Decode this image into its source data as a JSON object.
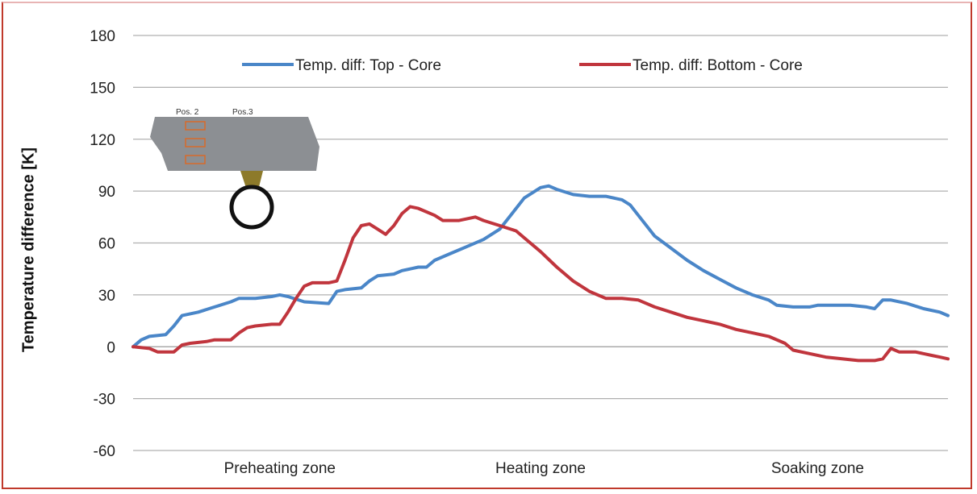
{
  "chart_data": {
    "type": "line",
    "title": "",
    "xlabel": "",
    "ylabel": "Temperature difference [K]",
    "ylim": [
      -60,
      180
    ],
    "yticks": [
      180,
      150,
      120,
      90,
      60,
      30,
      0,
      -30,
      -60
    ],
    "xlim": [
      0,
      100
    ],
    "grid": true,
    "legend_position": "top",
    "categories": [
      {
        "label": "Preheating zone",
        "x": 18
      },
      {
        "label": "Heating zone",
        "x": 50
      },
      {
        "label": "Soaking zone",
        "x": 84
      }
    ],
    "series": [
      {
        "name": "Temp. diff: Top - Core",
        "color": "#4a86c8",
        "points": [
          [
            0,
            0
          ],
          [
            1,
            4
          ],
          [
            2,
            6
          ],
          [
            4,
            7
          ],
          [
            5,
            12
          ],
          [
            6,
            18
          ],
          [
            8,
            20
          ],
          [
            10,
            23
          ],
          [
            12,
            26
          ],
          [
            13,
            28
          ],
          [
            15,
            28
          ],
          [
            17,
            29
          ],
          [
            18,
            30
          ],
          [
            19,
            29
          ],
          [
            21,
            26
          ],
          [
            24,
            25
          ],
          [
            25,
            32
          ],
          [
            26,
            33
          ],
          [
            28,
            34
          ],
          [
            29,
            38
          ],
          [
            30,
            41
          ],
          [
            32,
            42
          ],
          [
            33,
            44
          ],
          [
            35,
            46
          ],
          [
            36,
            46
          ],
          [
            37,
            50
          ],
          [
            39,
            54
          ],
          [
            41,
            58
          ],
          [
            43,
            62
          ],
          [
            45,
            68
          ],
          [
            46,
            74
          ],
          [
            47,
            80
          ],
          [
            48,
            86
          ],
          [
            50,
            92
          ],
          [
            51,
            93
          ],
          [
            52,
            91
          ],
          [
            54,
            88
          ],
          [
            56,
            87
          ],
          [
            58,
            87
          ],
          [
            60,
            85
          ],
          [
            61,
            82
          ],
          [
            62,
            76
          ],
          [
            63,
            70
          ],
          [
            64,
            64
          ],
          [
            66,
            57
          ],
          [
            68,
            50
          ],
          [
            70,
            44
          ],
          [
            72,
            39
          ],
          [
            74,
            34
          ],
          [
            76,
            30
          ],
          [
            78,
            27
          ],
          [
            79,
            24
          ],
          [
            81,
            23
          ],
          [
            83,
            23
          ],
          [
            84,
            24
          ],
          [
            86,
            24
          ],
          [
            88,
            24
          ],
          [
            90,
            23
          ],
          [
            91,
            22
          ],
          [
            92,
            27
          ],
          [
            93,
            27
          ],
          [
            95,
            25
          ],
          [
            97,
            22
          ],
          [
            99,
            20
          ],
          [
            100,
            18
          ]
        ]
      },
      {
        "name": "Temp. diff: Bottom - Core",
        "color": "#c0353d",
        "points": [
          [
            0,
            0
          ],
          [
            2,
            -1
          ],
          [
            3,
            -3
          ],
          [
            5,
            -3
          ],
          [
            6,
            1
          ],
          [
            7,
            2
          ],
          [
            9,
            3
          ],
          [
            10,
            4
          ],
          [
            12,
            4
          ],
          [
            13,
            8
          ],
          [
            14,
            11
          ],
          [
            15,
            12
          ],
          [
            17,
            13
          ],
          [
            18,
            13
          ],
          [
            19,
            20
          ],
          [
            20,
            28
          ],
          [
            21,
            35
          ],
          [
            22,
            37
          ],
          [
            24,
            37
          ],
          [
            25,
            38
          ],
          [
            26,
            50
          ],
          [
            27,
            63
          ],
          [
            28,
            70
          ],
          [
            29,
            71
          ],
          [
            30,
            68
          ],
          [
            31,
            65
          ],
          [
            32,
            70
          ],
          [
            33,
            77
          ],
          [
            34,
            81
          ],
          [
            35,
            80
          ],
          [
            37,
            76
          ],
          [
            38,
            73
          ],
          [
            40,
            73
          ],
          [
            42,
            75
          ],
          [
            43,
            73
          ],
          [
            45,
            70
          ],
          [
            47,
            67
          ],
          [
            48,
            63
          ],
          [
            50,
            55
          ],
          [
            52,
            46
          ],
          [
            54,
            38
          ],
          [
            56,
            32
          ],
          [
            58,
            28
          ],
          [
            60,
            28
          ],
          [
            62,
            27
          ],
          [
            64,
            23
          ],
          [
            66,
            20
          ],
          [
            68,
            17
          ],
          [
            70,
            15
          ],
          [
            72,
            13
          ],
          [
            74,
            10
          ],
          [
            76,
            8
          ],
          [
            78,
            6
          ],
          [
            80,
            2
          ],
          [
            81,
            -2
          ],
          [
            83,
            -4
          ],
          [
            85,
            -6
          ],
          [
            87,
            -7
          ],
          [
            89,
            -8
          ],
          [
            91,
            -8
          ],
          [
            92,
            -7
          ],
          [
            93,
            -1
          ],
          [
            94,
            -3
          ],
          [
            96,
            -3
          ],
          [
            98,
            -5
          ],
          [
            99,
            -6
          ],
          [
            100,
            -7
          ]
        ]
      }
    ]
  }
}
